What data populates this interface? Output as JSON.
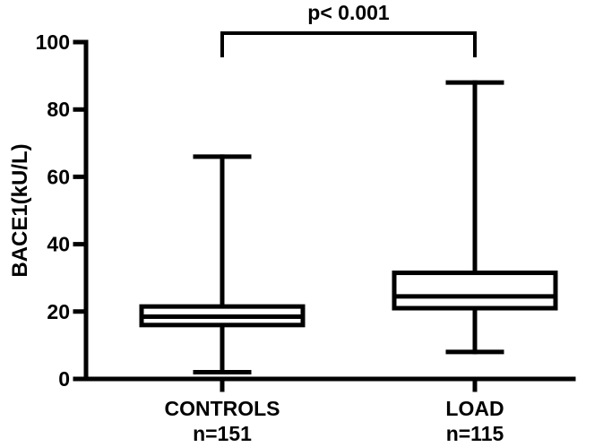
{
  "chart_data": {
    "type": "box",
    "ylabel": "BACE1(kU/L)",
    "ylim": [
      0,
      100
    ],
    "yticks": [
      0,
      20,
      40,
      60,
      80,
      100
    ],
    "categories": [
      "CONTROLS",
      "LOAD"
    ],
    "sample_sizes": [
      "n=151",
      "n=115"
    ],
    "boxes": [
      {
        "category": "CONTROLS",
        "min": 2,
        "q1": 16,
        "median": 18.5,
        "q3": 21.5,
        "max": 66
      },
      {
        "category": "LOAD",
        "min": 8,
        "q1": 21,
        "median": 24.5,
        "q3": 31.5,
        "max": 88
      }
    ],
    "annotation": "p< 0.001"
  }
}
